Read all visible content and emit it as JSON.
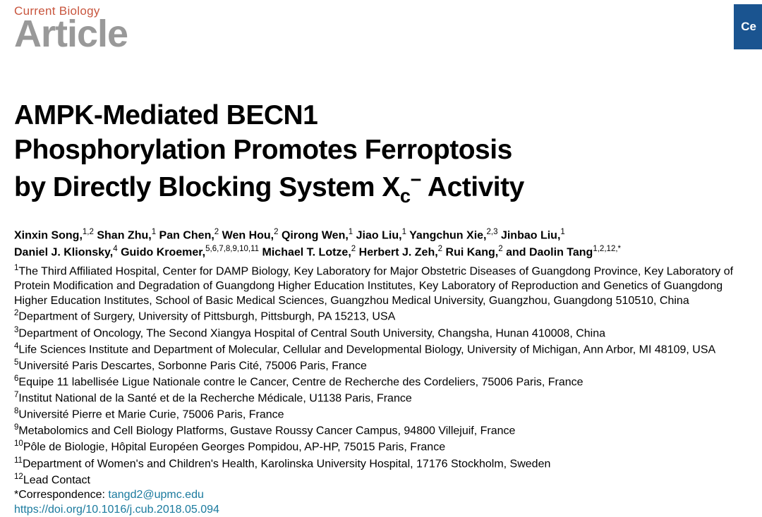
{
  "journal": "Current Biology",
  "article_type": "Article",
  "corner_badge": "Ce",
  "title_line1": "AMPK-Mediated BECN1",
  "title_line2": "Phosphorylation Promotes Ferroptosis",
  "title_line3_a": "by Directly Blocking System X",
  "title_line3_sub": "c",
  "title_line3_minus": "−",
  "title_line3_b": " Activity",
  "authors": {
    "a1": {
      "name": "Xinxin Song,",
      "aff": "1,2"
    },
    "a2": {
      "name": "Shan Zhu,",
      "aff": "1"
    },
    "a3": {
      "name": "Pan Chen,",
      "aff": "2"
    },
    "a4": {
      "name": "Wen Hou,",
      "aff": "2"
    },
    "a5": {
      "name": "Qirong Wen,",
      "aff": "1"
    },
    "a6": {
      "name": "Jiao Liu,",
      "aff": "1"
    },
    "a7": {
      "name": "Yangchun Xie,",
      "aff": "2,3"
    },
    "a8": {
      "name": "Jinbao Liu,",
      "aff": "1"
    },
    "a9": {
      "name": "Daniel J. Klionsky,",
      "aff": "4"
    },
    "a10": {
      "name": "Guido Kroemer,",
      "aff": "5,6,7,8,9,10,11"
    },
    "a11": {
      "name": "Michael T. Lotze,",
      "aff": "2"
    },
    "a12": {
      "name": "Herbert J. Zeh,",
      "aff": "2"
    },
    "a13": {
      "name": "Rui Kang,",
      "aff": "2"
    },
    "a14_and": "and ",
    "a14": {
      "name": "Daolin Tang",
      "aff": "1,2,12,",
      "star": "*"
    }
  },
  "affiliations": {
    "f1": {
      "n": "1",
      "text": "The Third Affiliated Hospital, Center for DAMP Biology, Key Laboratory for Major Obstetric Diseases of Guangdong Province, Key Laboratory of Protein Modification and Degradation of Guangdong Higher Education Institutes, Key Laboratory of Reproduction and Genetics of Guangdong Higher Education Institutes, School of Basic Medical Sciences, Guangzhou Medical University, Guangzhou, Guangdong 510510, China"
    },
    "f2": {
      "n": "2",
      "text": "Department of Surgery, University of Pittsburgh, Pittsburgh, PA 15213, USA"
    },
    "f3": {
      "n": "3",
      "text": "Department of Oncology, The Second Xiangya Hospital of Central South University, Changsha, Hunan 410008, China"
    },
    "f4": {
      "n": "4",
      "text": "Life Sciences Institute and Department of Molecular, Cellular and Developmental Biology, University of Michigan, Ann Arbor, MI 48109, USA"
    },
    "f5": {
      "n": "5",
      "text": "Université Paris Descartes, Sorbonne Paris Cité, 75006 Paris, France"
    },
    "f6": {
      "n": "6",
      "text": "Equipe 11 labellisée Ligue Nationale contre le Cancer, Centre de Recherche des Cordeliers, 75006 Paris, France"
    },
    "f7": {
      "n": "7",
      "text": "Institut National de la Santé et de la Recherche Médicale, U1138 Paris, France"
    },
    "f8": {
      "n": "8",
      "text": "Université Pierre et Marie Curie, 75006 Paris, France"
    },
    "f9": {
      "n": "9",
      "text": "Metabolomics and Cell Biology Platforms, Gustave Roussy Cancer Campus, 94800 Villejuif, France"
    },
    "f10": {
      "n": "10",
      "text": "Pôle de Biologie, Hôpital Européen Georges Pompidou, AP-HP, 75015 Paris, France"
    },
    "f11": {
      "n": "11",
      "text": "Department of Women's and Children's Health, Karolinska University Hospital, 17176 Stockholm, Sweden"
    },
    "f12": {
      "n": "12",
      "text": "Lead Contact"
    }
  },
  "correspondence_label": "*Correspondence: ",
  "correspondence_email": "tangd2@upmc.edu",
  "doi": "https://doi.org/10.1016/j.cub.2018.05.094",
  "colors": {
    "journal": "#c8553d",
    "article_type": "#999999",
    "badge_bg": "#1a5490",
    "link": "#1a7a9e"
  }
}
